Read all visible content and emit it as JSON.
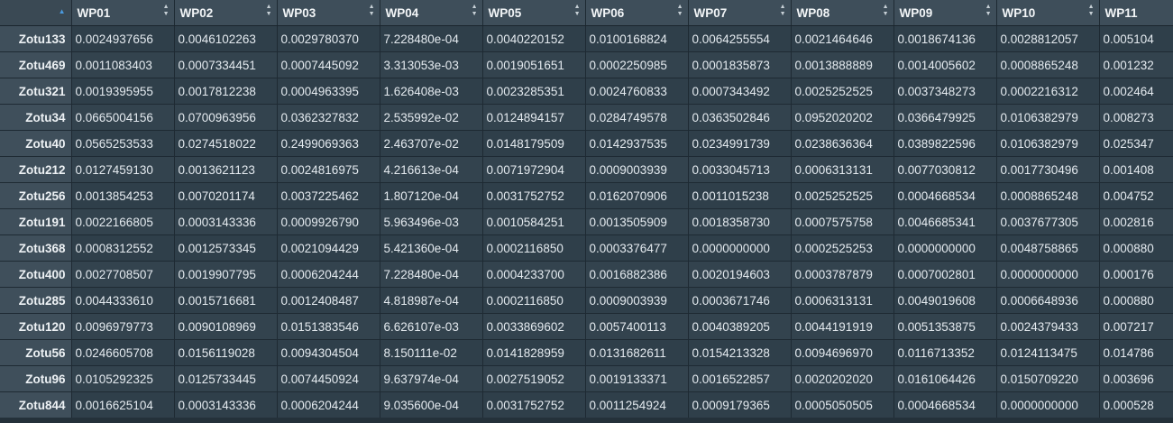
{
  "table": {
    "columns": [
      "WP01",
      "WP02",
      "WP03",
      "WP04",
      "WP05",
      "WP06",
      "WP07",
      "WP08",
      "WP09",
      "WP10",
      "WP11"
    ],
    "rows": [
      {
        "name": "Zotu133",
        "values": [
          "0.0024937656",
          "0.0046102263",
          "0.0029780370",
          "7.228480e-04",
          "0.0040220152",
          "0.0100168824",
          "0.0064255554",
          "0.0021464646",
          "0.0018674136",
          "0.0028812057",
          "0.005104"
        ]
      },
      {
        "name": "Zotu469",
        "values": [
          "0.0011083403",
          "0.0007334451",
          "0.0007445092",
          "3.313053e-03",
          "0.0019051651",
          "0.0002250985",
          "0.0001835873",
          "0.0013888889",
          "0.0014005602",
          "0.0008865248",
          "0.001232"
        ]
      },
      {
        "name": "Zotu321",
        "values": [
          "0.0019395955",
          "0.0017812238",
          "0.0004963395",
          "1.626408e-03",
          "0.0023285351",
          "0.0024760833",
          "0.0007343492",
          "0.0025252525",
          "0.0037348273",
          "0.0002216312",
          "0.002464"
        ]
      },
      {
        "name": "Zotu34",
        "values": [
          "0.0665004156",
          "0.0700963956",
          "0.0362327832",
          "2.535992e-02",
          "0.0124894157",
          "0.0284749578",
          "0.0363502846",
          "0.0952020202",
          "0.0366479925",
          "0.0106382979",
          "0.008273"
        ]
      },
      {
        "name": "Zotu40",
        "values": [
          "0.0565253533",
          "0.0274518022",
          "0.2499069363",
          "2.463707e-02",
          "0.0148179509",
          "0.0142937535",
          "0.0234991739",
          "0.0238636364",
          "0.0389822596",
          "0.0106382979",
          "0.025347"
        ]
      },
      {
        "name": "Zotu212",
        "values": [
          "0.0127459130",
          "0.0013621123",
          "0.0024816975",
          "4.216613e-04",
          "0.0071972904",
          "0.0009003939",
          "0.0033045713",
          "0.0006313131",
          "0.0077030812",
          "0.0017730496",
          "0.001408"
        ]
      },
      {
        "name": "Zotu256",
        "values": [
          "0.0013854253",
          "0.0070201174",
          "0.0037225462",
          "1.807120e-04",
          "0.0031752752",
          "0.0162070906",
          "0.0011015238",
          "0.0025252525",
          "0.0004668534",
          "0.0008865248",
          "0.004752"
        ]
      },
      {
        "name": "Zotu191",
        "values": [
          "0.0022166805",
          "0.0003143336",
          "0.0009926790",
          "5.963496e-03",
          "0.0010584251",
          "0.0013505909",
          "0.0018358730",
          "0.0007575758",
          "0.0046685341",
          "0.0037677305",
          "0.002816"
        ]
      },
      {
        "name": "Zotu368",
        "values": [
          "0.0008312552",
          "0.0012573345",
          "0.0021094429",
          "5.421360e-04",
          "0.0002116850",
          "0.0003376477",
          "0.0000000000",
          "0.0002525253",
          "0.0000000000",
          "0.0048758865",
          "0.000880"
        ]
      },
      {
        "name": "Zotu400",
        "values": [
          "0.0027708507",
          "0.0019907795",
          "0.0006204244",
          "7.228480e-04",
          "0.0004233700",
          "0.0016882386",
          "0.0020194603",
          "0.0003787879",
          "0.0007002801",
          "0.0000000000",
          "0.000176"
        ]
      },
      {
        "name": "Zotu285",
        "values": [
          "0.0044333610",
          "0.0015716681",
          "0.0012408487",
          "4.818987e-04",
          "0.0002116850",
          "0.0009003939",
          "0.0003671746",
          "0.0006313131",
          "0.0049019608",
          "0.0006648936",
          "0.000880"
        ]
      },
      {
        "name": "Zotu120",
        "values": [
          "0.0096979773",
          "0.0090108969",
          "0.0151383546",
          "6.626107e-03",
          "0.0033869602",
          "0.0057400113",
          "0.0040389205",
          "0.0044191919",
          "0.0051353875",
          "0.0024379433",
          "0.007217"
        ]
      },
      {
        "name": "Zotu56",
        "values": [
          "0.0246605708",
          "0.0156119028",
          "0.0094304504",
          "8.150111e-02",
          "0.0141828959",
          "0.0131682611",
          "0.0154213328",
          "0.0094696970",
          "0.0116713352",
          "0.0124113475",
          "0.014786"
        ]
      },
      {
        "name": "Zotu96",
        "values": [
          "0.0105292325",
          "0.0125733445",
          "0.0074450924",
          "9.637974e-04",
          "0.0027519052",
          "0.0019133371",
          "0.0016522857",
          "0.0020202020",
          "0.0161064426",
          "0.0150709220",
          "0.003696"
        ]
      },
      {
        "name": "Zotu844",
        "values": [
          "0.0016625104",
          "0.0003143336",
          "0.0006204244",
          "9.035600e-04",
          "0.0031752752",
          "0.0011254924",
          "0.0009179365",
          "0.0005050505",
          "0.0004668534",
          "0.0000000000",
          "0.000528"
        ]
      }
    ]
  }
}
